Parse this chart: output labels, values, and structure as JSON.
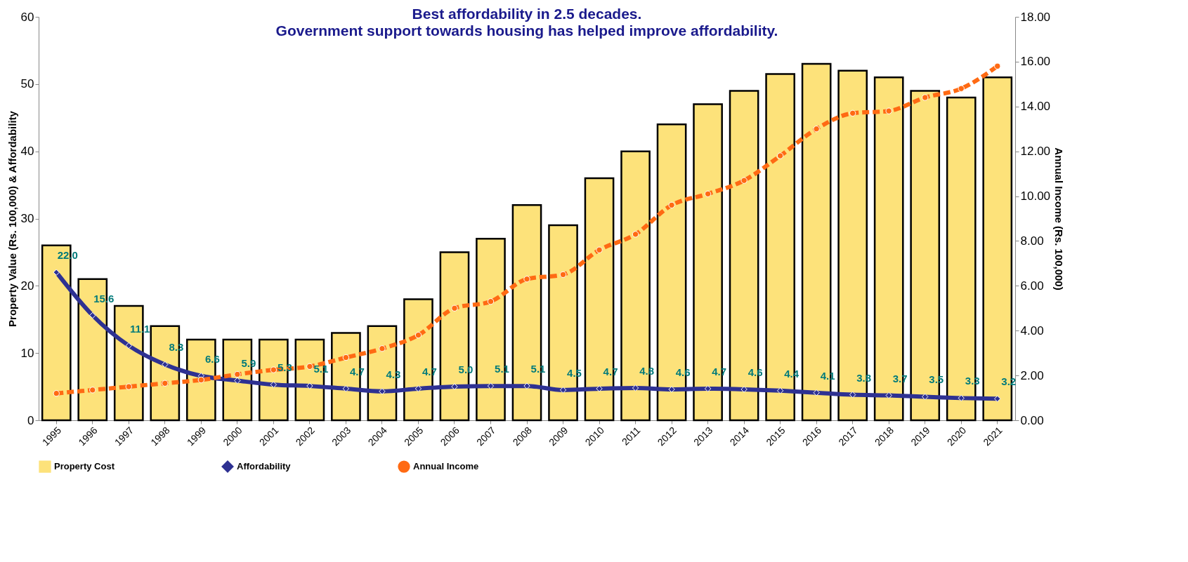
{
  "chart_data": {
    "type": "bar",
    "title": "Best affordability in 2.5 decades.",
    "subtitle": "Government support towards housing has helped improve affordability.",
    "ylabel": "Property Value (Rs. 100,000) & Affordability",
    "y2label": "Annual Income (Rs. 100,000)",
    "categories": [
      "1995",
      "1996",
      "1997",
      "1998",
      "1999",
      "2000",
      "2001",
      "2002",
      "2003",
      "2004",
      "2005",
      "2006",
      "2007",
      "2008",
      "2009",
      "2010",
      "2011",
      "2012",
      "2013",
      "2014",
      "2015",
      "2016",
      "2017",
      "2018",
      "2019",
      "2020",
      "2021"
    ],
    "series": [
      {
        "name": "Property Cost",
        "color": "#fde27a",
        "values": [
          26,
          21,
          17,
          14,
          12,
          12,
          12,
          12,
          13,
          14,
          18,
          25,
          27,
          32,
          29,
          36,
          40,
          44,
          47,
          49,
          51.5,
          53,
          52,
          51,
          49,
          48,
          51
        ]
      },
      {
        "name": "Affordability",
        "type": "line",
        "color": "#2e3192",
        "marker": "diamond",
        "line_style": "solid",
        "values": [
          22.0,
          15.6,
          11.1,
          8.3,
          6.6,
          5.9,
          5.3,
          5.1,
          4.7,
          4.3,
          4.7,
          5.0,
          5.1,
          5.1,
          4.5,
          4.7,
          4.8,
          4.6,
          4.7,
          4.6,
          4.4,
          4.1,
          3.8,
          3.7,
          3.5,
          3.3,
          3.2
        ],
        "value_labels": [
          "22.0",
          "15.6",
          "11.1",
          "8.3",
          "6.6",
          "5.9",
          "5.3",
          "5.1",
          "4.7",
          "4.3",
          "4.7",
          "5.0",
          "5.1",
          "5.1",
          "4.5",
          "4.7",
          "4.8",
          "4.6",
          "4.7",
          "4.6",
          "4.4",
          "4.1",
          "3.8",
          "3.7",
          "3.5",
          "3.3",
          "3.2"
        ]
      },
      {
        "name": "Annual Income",
        "type": "line",
        "axis": "y2",
        "color": "#ff6a13",
        "marker": "circle",
        "line_style": "dashed",
        "values": [
          1.2,
          1.35,
          1.5,
          1.65,
          1.8,
          2.05,
          2.25,
          2.4,
          2.8,
          3.2,
          3.8,
          5.0,
          5.3,
          6.3,
          6.5,
          7.6,
          8.3,
          9.6,
          10.1,
          10.7,
          11.8,
          13.0,
          13.7,
          13.8,
          14.4,
          14.8,
          15.8
        ]
      }
    ],
    "ylim": [
      0,
      60
    ],
    "yticks": [
      0,
      10,
      20,
      30,
      40,
      50,
      60
    ],
    "y2lim": [
      0,
      18
    ],
    "y2ticks": [
      {
        "value": 0,
        "label": "0.00"
      },
      {
        "value": 2,
        "label": "2.00"
      },
      {
        "value": 4,
        "label": "4.00"
      },
      {
        "value": 6,
        "label": "6.00"
      },
      {
        "value": 8,
        "label": "8.00"
      },
      {
        "value": 10,
        "label": "10.00"
      },
      {
        "value": 12,
        "label": "12.00"
      },
      {
        "value": 14,
        "label": "14.00"
      },
      {
        "value": 16,
        "label": "16.00"
      },
      {
        "value": 18,
        "label": "18.00"
      }
    ],
    "grid": false,
    "legend": "bottom"
  }
}
